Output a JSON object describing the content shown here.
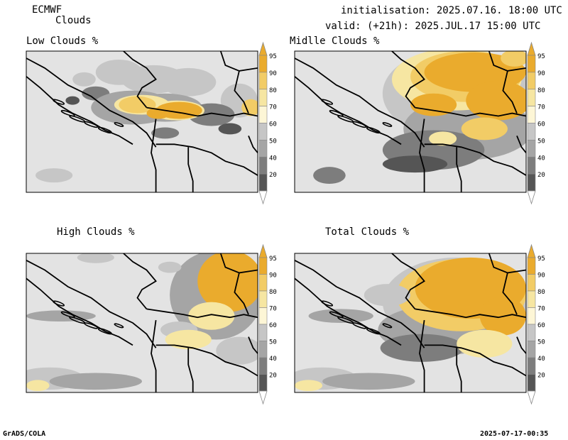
{
  "header": {
    "model": "ECMWF",
    "product": "Clouds",
    "init": "initialisation: 2025.07.16. 18:00 UTC",
    "valid": "valid: (+21h): 2025.JUL.17 15:00 UTC"
  },
  "footer": {
    "left": "GrADS/COLA",
    "right": "2025-07-17-00:35"
  },
  "colors": {
    "land": "#e3e3e3",
    "c20": "#555555",
    "c40": "#7d7d7d",
    "c50": "#a5a5a5",
    "c60": "#c6c6c6",
    "c80": "#f6e6a2",
    "c90": "#f2cc66",
    "c95": "#eaab2d"
  },
  "colorbar": {
    "labels": [
      "95",
      "90",
      "80",
      "70",
      "60",
      "50",
      "40",
      "20"
    ]
  },
  "panels": [
    {
      "title": "Low Clouds %"
    },
    {
      "title": "Midlle Clouds %"
    },
    {
      "title": "High Clouds %"
    },
    {
      "title": "Total Clouds %"
    }
  ]
}
